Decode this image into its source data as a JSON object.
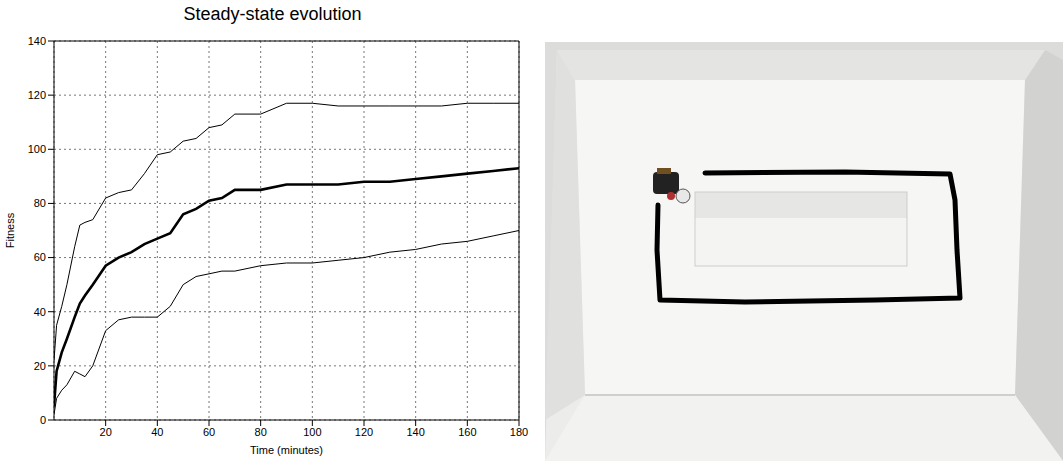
{
  "chart_data": {
    "type": "line",
    "title": "Steady-state evolution",
    "x_label": "Time (minutes)",
    "y_label": "Fitness",
    "x": [
      0,
      1,
      3,
      5,
      8,
      10,
      12,
      15,
      20,
      25,
      30,
      35,
      40,
      45,
      50,
      55,
      60,
      65,
      70,
      80,
      90,
      100,
      110,
      120,
      130,
      140,
      150,
      160,
      170,
      180
    ],
    "series": [
      {
        "color": "#000000",
        "marker": "none",
        "line_style": "solid",
        "values": [
          22,
          35,
          42,
          50,
          64,
          72,
          73,
          74,
          82,
          84,
          85,
          91,
          98,
          99,
          103,
          104,
          108,
          109,
          113,
          113,
          117,
          117,
          116,
          116,
          116,
          116,
          116,
          117,
          117,
          117
        ]
      },
      {
        "color": "#000000",
        "marker": "none",
        "line_style": "solid",
        "values": [
          5,
          18,
          25,
          30,
          38,
          43,
          46,
          50,
          57,
          60,
          62,
          65,
          67,
          69,
          76,
          78,
          81,
          82,
          85,
          85,
          87,
          87,
          87,
          88,
          88,
          89,
          90,
          91,
          92,
          93
        ]
      },
      {
        "color": "#000000",
        "marker": "none",
        "line_style": "solid",
        "values": [
          2,
          8,
          11,
          13,
          18,
          17,
          16,
          20,
          33,
          37,
          38,
          38,
          38,
          42,
          50,
          53,
          54,
          55,
          55,
          57,
          58,
          58,
          59,
          60,
          62,
          63,
          65,
          66,
          68,
          70
        ]
      }
    ],
    "xlim": [
      0,
      180
    ],
    "xticks": [
      20,
      40,
      60,
      80,
      100,
      120,
      140,
      160,
      180
    ],
    "ylim": [
      0,
      140
    ],
    "yticks": [
      0,
      20,
      40,
      60,
      80,
      100,
      120,
      140
    ],
    "grid": true
  }
}
